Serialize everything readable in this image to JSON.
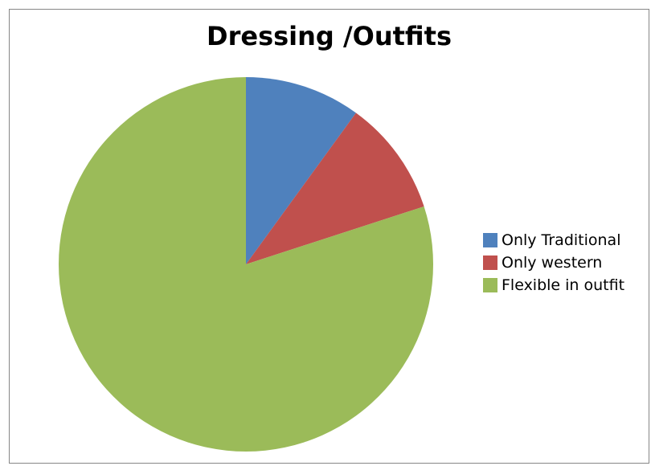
{
  "chart_data": {
    "type": "pie",
    "title": "Dressing /Outfits",
    "categories": [
      "Only Traditional",
      "Only western",
      "Flexible in outfit"
    ],
    "values": [
      10,
      10,
      80
    ],
    "colors": [
      "#4F81BD",
      "#C0504D",
      "#9BBB59"
    ],
    "start_angle_deg": 0,
    "direction": "clockwise",
    "legend_position": "right"
  }
}
